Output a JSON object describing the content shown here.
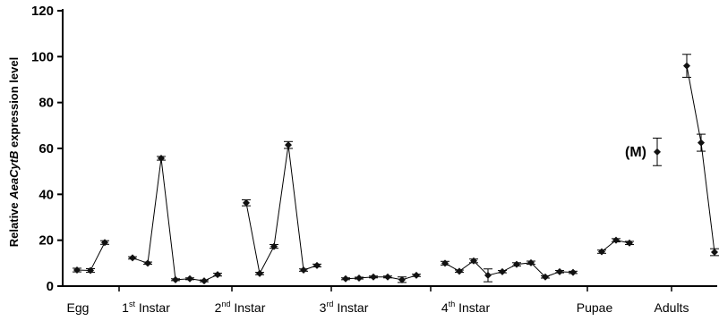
{
  "chart_data": {
    "type": "line",
    "ylabel": {
      "prefix": "Relative ",
      "italic": "AeaCytB",
      "suffix": " expression level"
    },
    "ylim": [
      0,
      120
    ],
    "yticks": [
      0,
      20,
      40,
      60,
      80,
      100,
      120
    ],
    "grid": false,
    "groups": [
      {
        "name": "Egg",
        "sup": "",
        "after": ""
      },
      {
        "name": "1",
        "sup": "st",
        "after": " Instar"
      },
      {
        "name": "2",
        "sup": "nd",
        "after": "  Instar"
      },
      {
        "name": "3",
        "sup": "rd",
        "after": " Instar"
      },
      {
        "name": "4",
        "sup": "th",
        "after": " Instar"
      },
      {
        "name": "Pupae",
        "sup": "",
        "after": ""
      },
      {
        "name": "Adults",
        "sup": "",
        "after": ""
      }
    ],
    "series": [
      {
        "group": 0,
        "points": [
          [
            0,
            7.0,
            0.8
          ],
          [
            1,
            6.8,
            0.8
          ],
          [
            2,
            19.0,
            0.8
          ]
        ]
      },
      {
        "group": 1,
        "points": [
          [
            0,
            12.3,
            0.5
          ],
          [
            1,
            10.0,
            0.5
          ],
          [
            2,
            55.7,
            0.8
          ],
          [
            3,
            2.8,
            0.4
          ],
          [
            4,
            3.2,
            0.4
          ],
          [
            5,
            2.3,
            0.4
          ],
          [
            6,
            5.0,
            0.6
          ]
        ]
      },
      {
        "group": 2,
        "points": [
          [
            0,
            36.3,
            1.3
          ],
          [
            1,
            5.5,
            0.5
          ],
          [
            2,
            17.3,
            0.8
          ],
          [
            3,
            61.5,
            1.5
          ],
          [
            4,
            7.0,
            0.5
          ],
          [
            5,
            9.0,
            0.6
          ]
        ]
      },
      {
        "group": 3,
        "points": [
          [
            0,
            3.2,
            0.4
          ],
          [
            1,
            3.5,
            0.4
          ],
          [
            2,
            4.0,
            0.4
          ],
          [
            3,
            4.0,
            0.4
          ],
          [
            4,
            2.8,
            1.2
          ],
          [
            5,
            4.7,
            0.5
          ]
        ]
      },
      {
        "group": 4,
        "points": [
          [
            0,
            10.0,
            0.8
          ],
          [
            1,
            6.5,
            0.5
          ],
          [
            2,
            11.0,
            0.8
          ],
          [
            3,
            4.7,
            2.8
          ],
          [
            4,
            6.3,
            0.5
          ],
          [
            5,
            9.5,
            0.7
          ],
          [
            6,
            10.2,
            0.7
          ],
          [
            7,
            4.0,
            0.5
          ],
          [
            8,
            6.3,
            0.5
          ],
          [
            9,
            6.0,
            0.5
          ]
        ]
      },
      {
        "group": 5,
        "points": [
          [
            0,
            15.0,
            0.7
          ],
          [
            1,
            20.0,
            0.7
          ],
          [
            2,
            18.8,
            0.7
          ]
        ]
      },
      {
        "group": 6,
        "points": [
          [
            0,
            96.0,
            5.0
          ],
          [
            1,
            62.5,
            3.7
          ],
          [
            2,
            14.8,
            1.5
          ]
        ]
      }
    ],
    "standalone_points": [
      {
        "label": "(M)",
        "y": 58.5,
        "err": 6.0
      }
    ]
  }
}
